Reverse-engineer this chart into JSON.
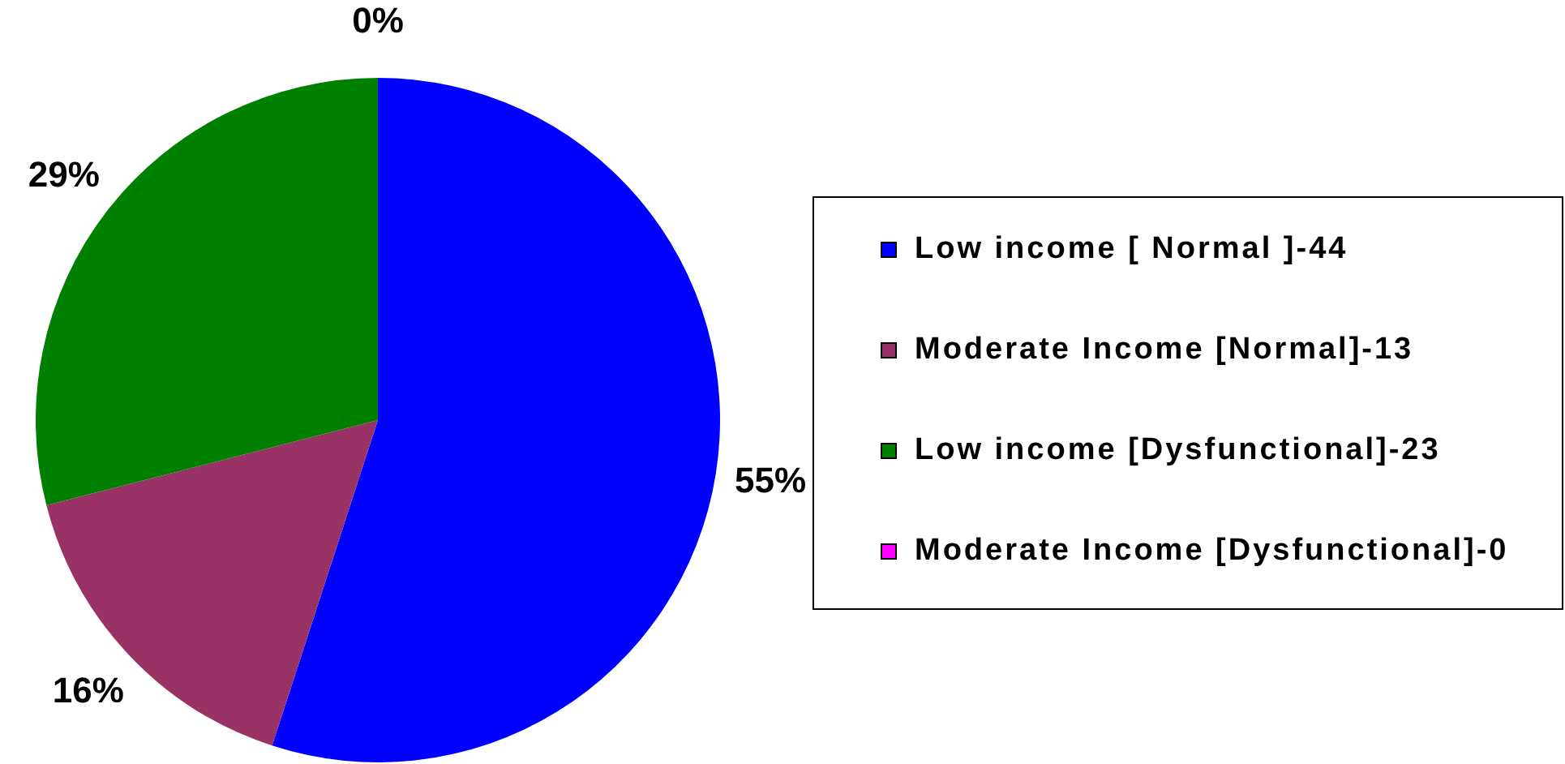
{
  "chart_data": {
    "type": "pie",
    "categories": [
      "Low income [ Normal ]-44",
      "Moderate Income [Normal]-13",
      "Low income [Dysfunctional]-23",
      "Moderate Income [Dysfunctional]-0"
    ],
    "values": [
      55,
      16,
      29,
      0
    ],
    "colors": [
      "#0000ff",
      "#993366",
      "#008000",
      "#ff00ff"
    ],
    "value_labels": [
      "55%",
      "16%",
      "29%",
      "0%"
    ],
    "legend": "right"
  }
}
